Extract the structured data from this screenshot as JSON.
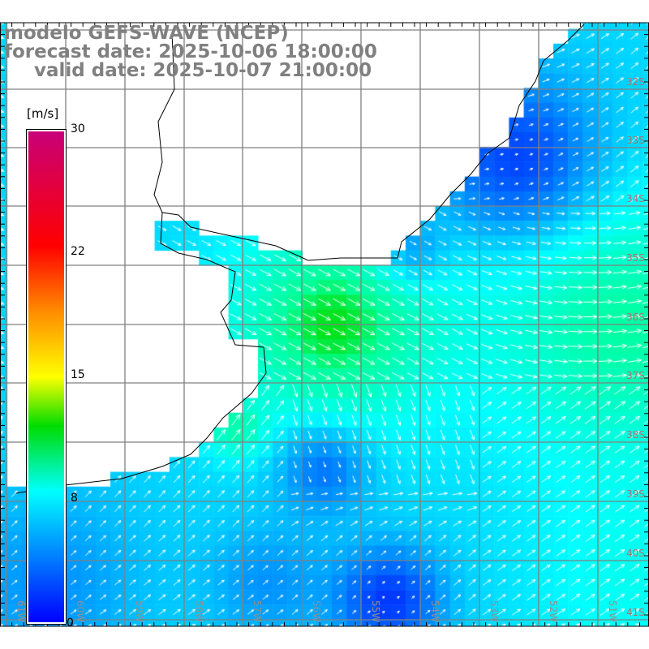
{
  "title": {
    "model": "modelo GEFS-WAVE (NCEP)",
    "forecast": "forecast date: 2025-10-06 18:00:00",
    "valid": "valid date: 2025-10-07 21:00:00"
  },
  "colorbar": {
    "units": "[m/s]",
    "ticks": [
      "30",
      "22",
      "15",
      "8",
      "0"
    ],
    "colors": {
      "min": "#0000ff",
      "mid": "#00ffff",
      "green": "#00dc00",
      "yellow": "#ffff00",
      "red": "#ff0000",
      "max": "#c80078"
    }
  },
  "lat_labels": [
    "32S",
    "33S",
    "34S",
    "35S",
    "36S",
    "37S",
    "38S",
    "39S",
    "40S",
    "41S"
  ],
  "lon_labels": [
    "61W",
    "60W",
    "59W",
    "58W",
    "57W",
    "56W",
    "55W",
    "54W",
    "53W",
    "52W",
    "51W"
  ],
  "variable": "wind speed and direction"
}
